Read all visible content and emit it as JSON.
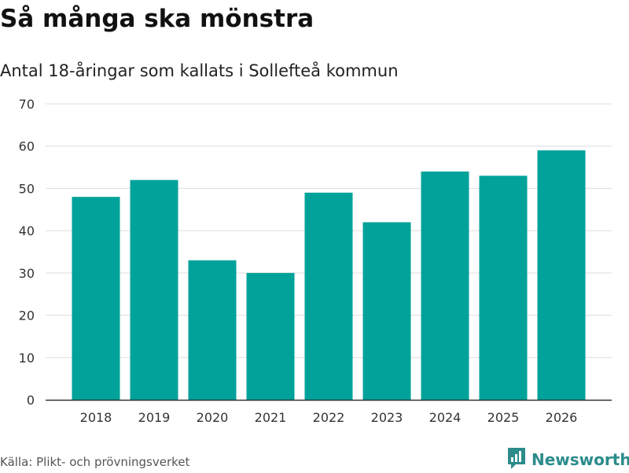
{
  "chart_data": {
    "type": "bar",
    "title": "Så många ska mönstra",
    "subtitle": "Antal 18-åringar som kallats i Sollefteå kommun",
    "categories": [
      "2018",
      "2019",
      "2020",
      "2021",
      "2022",
      "2023",
      "2024",
      "2025",
      "2026"
    ],
    "values": [
      48,
      52,
      33,
      30,
      49,
      42,
      54,
      53,
      59
    ],
    "ylim": [
      0,
      70
    ],
    "yticks": [
      0,
      10,
      20,
      30,
      40,
      50,
      60,
      70
    ],
    "xlabel": "",
    "ylabel": "",
    "grid": true,
    "bar_color": "#00a29a"
  },
  "footer": {
    "source": "Källa: Plikt- och prövningsverket",
    "brand": "Newsworthy",
    "brand_color": "#2b8c8a"
  }
}
